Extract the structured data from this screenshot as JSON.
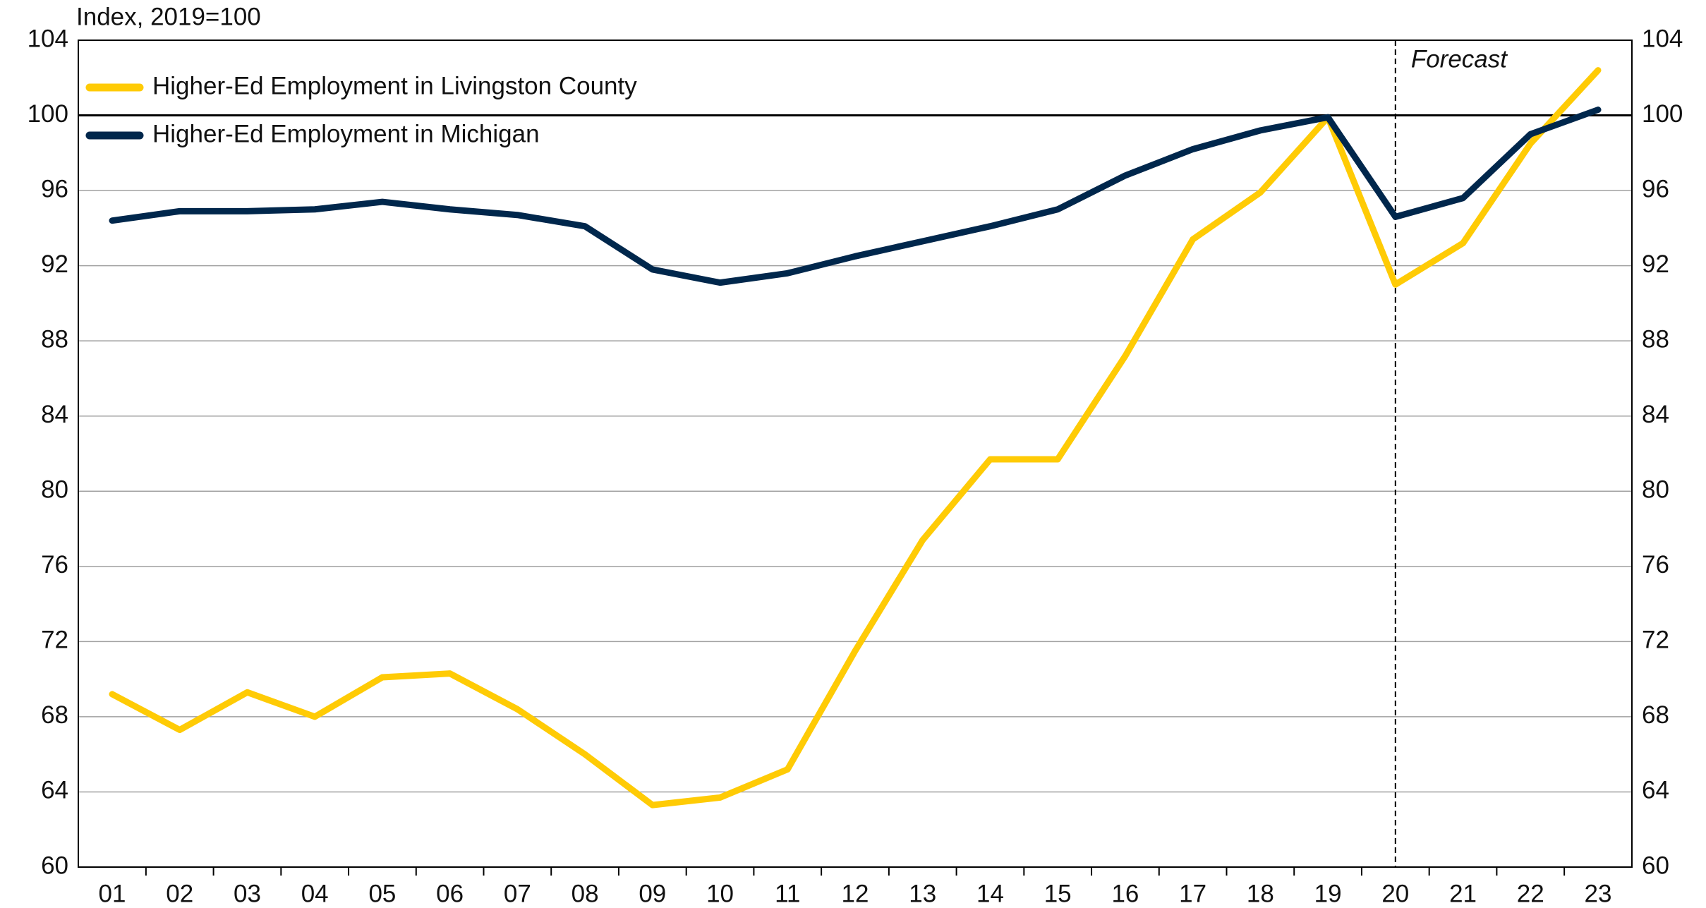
{
  "chart_data": {
    "type": "line",
    "y_label": "Index, 2019=100",
    "categories": [
      "01",
      "02",
      "03",
      "04",
      "05",
      "06",
      "07",
      "08",
      "09",
      "10",
      "11",
      "12",
      "13",
      "14",
      "15",
      "16",
      "17",
      "18",
      "19",
      "20",
      "21",
      "22",
      "23"
    ],
    "series": [
      {
        "name": "Higher-Ed Employment in Livingston County",
        "color": "#ffcb05",
        "values": [
          69.2,
          67.3,
          69.3,
          68.0,
          70.1,
          70.3,
          68.4,
          66.0,
          63.3,
          63.7,
          65.2,
          71.5,
          77.4,
          81.7,
          81.7,
          87.2,
          93.4,
          95.9,
          99.9,
          91.0,
          93.2,
          98.5,
          102.4
        ]
      },
      {
        "name": "Higher-Ed Employment in Michigan",
        "color": "#00274c",
        "values": [
          94.4,
          94.9,
          94.9,
          95.0,
          95.4,
          95.0,
          94.7,
          94.1,
          91.8,
          91.1,
          91.6,
          92.5,
          93.3,
          94.1,
          95.0,
          96.8,
          98.2,
          99.2,
          99.9,
          94.6,
          95.6,
          99.0,
          100.3
        ]
      }
    ],
    "ylim": [
      60,
      104
    ],
    "yticks": [
      60,
      64,
      68,
      72,
      76,
      80,
      84,
      88,
      92,
      96,
      100,
      104
    ],
    "y2lim": [
      60,
      104
    ],
    "y2ticks": [
      60,
      64,
      68,
      72,
      76,
      80,
      84,
      88,
      92,
      96,
      100,
      104
    ],
    "reference_line": 100,
    "grid": true,
    "legend": "top-left",
    "annotations": [
      {
        "text": "Forecast",
        "x": "20"
      }
    ]
  }
}
